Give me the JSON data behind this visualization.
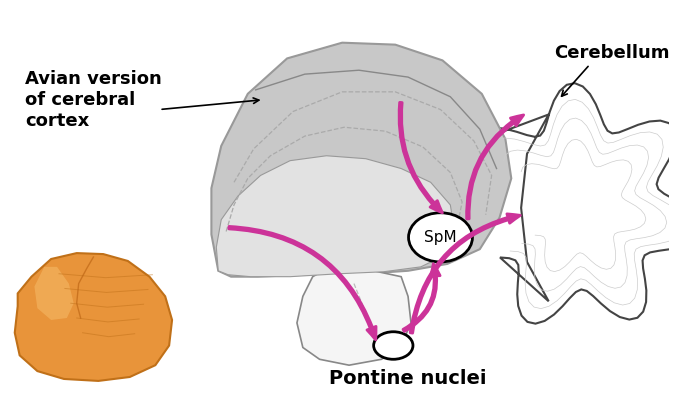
{
  "bg_color": "#ffffff",
  "arrow_color": "#cc3399",
  "brain_fill": "#c8c8c8",
  "brain_edge": "#999999",
  "brain_inner_fill": "#d8d8d8",
  "label_cortex": "Avian version\nof cerebral\ncortex",
  "label_cerebellum": "Cerebellum",
  "label_spm": "SpM",
  "label_pontine": "Pontine nuclei",
  "label_fontsize": 13,
  "spm_fontsize": 11,
  "pontine_fontsize": 14,
  "dashed_color": "#aaaaaa",
  "outline_color": "#555555",
  "pontine_photo_color": "#E8943A",
  "pontine_photo_edge": "#C07018"
}
